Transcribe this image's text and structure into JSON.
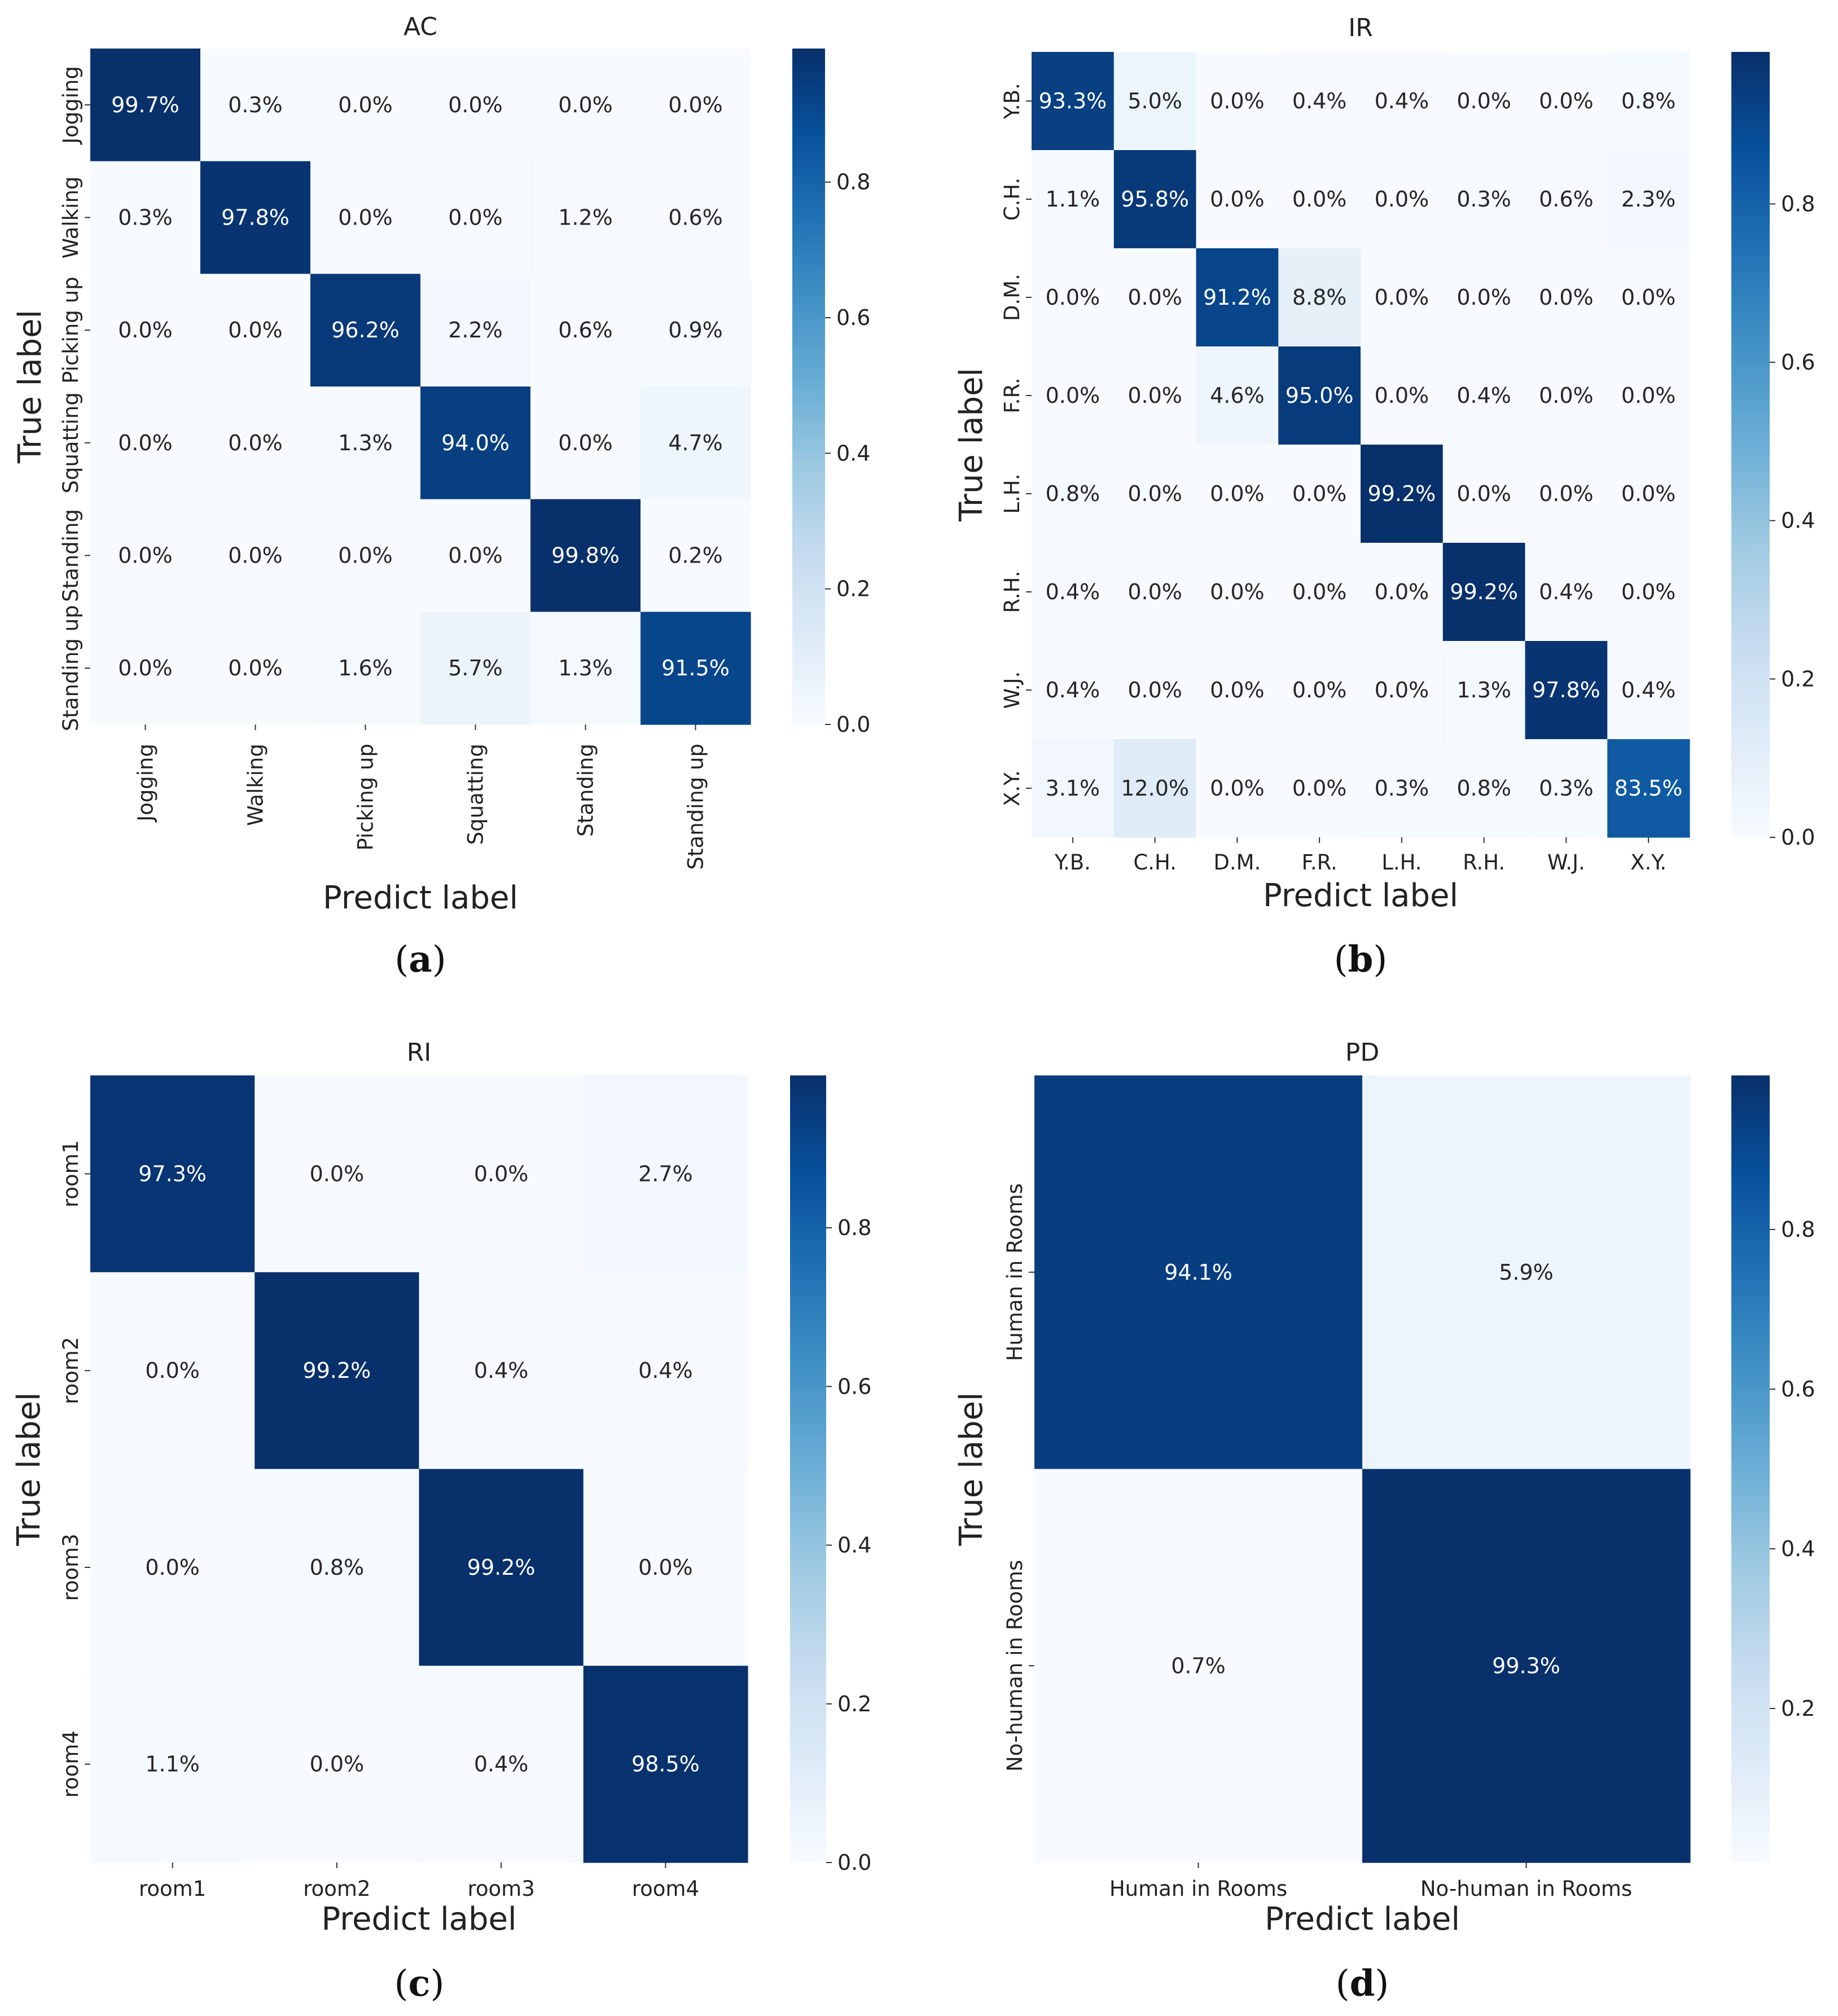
{
  "chart_data": [
    {
      "type": "heatmap",
      "title": "AC",
      "caption": "a",
      "xlabel": "Predict label",
      "ylabel": "True label",
      "x_categories": [
        "Jogging",
        "Walking",
        "Picking up",
        "Squatting",
        "Standing",
        "Standing up"
      ],
      "y_categories": [
        "Jogging",
        "Walking",
        "Picking up",
        "Squatting",
        "Standing",
        "Standing up"
      ],
      "values": [
        [
          99.7,
          0.3,
          0.0,
          0.0,
          0.0,
          0.0
        ],
        [
          0.3,
          97.8,
          0.0,
          0.0,
          1.2,
          0.6
        ],
        [
          0.0,
          0.0,
          96.2,
          2.2,
          0.6,
          0.9
        ],
        [
          0.0,
          0.0,
          1.3,
          94.0,
          0.0,
          4.7
        ],
        [
          0.0,
          0.0,
          0.0,
          0.0,
          99.8,
          0.2
        ],
        [
          0.0,
          0.0,
          1.6,
          5.7,
          1.3,
          91.5
        ]
      ],
      "colorbar_ticks": [
        "0.0",
        "0.2",
        "0.4",
        "0.6",
        "0.8"
      ],
      "colorbar_range": [
        0,
        0.997
      ],
      "xtick_rotation": "vertical",
      "ytick_rotation": "vertical"
    },
    {
      "type": "heatmap",
      "title": "IR",
      "caption": "b",
      "xlabel": "Predict label",
      "ylabel": "True label",
      "x_categories": [
        "Y.B.",
        "C.H.",
        "D.M.",
        "F.R.",
        "L.H.",
        "R.H.",
        "W.J.",
        "X.Y."
      ],
      "y_categories": [
        "Y.B.",
        "C.H.",
        "D.M.",
        "F.R.",
        "L.H.",
        "R.H.",
        "W.J.",
        "X.Y."
      ],
      "values": [
        [
          93.3,
          5.0,
          0.0,
          0.4,
          0.4,
          0.0,
          0.0,
          0.8
        ],
        [
          1.1,
          95.8,
          0.0,
          0.0,
          0.0,
          0.3,
          0.6,
          2.3
        ],
        [
          0.0,
          0.0,
          91.2,
          8.8,
          0.0,
          0.0,
          0.0,
          0.0
        ],
        [
          0.0,
          0.0,
          4.6,
          95.0,
          0.0,
          0.4,
          0.0,
          0.0
        ],
        [
          0.8,
          0.0,
          0.0,
          0.0,
          99.2,
          0.0,
          0.0,
          0.0
        ],
        [
          0.4,
          0.0,
          0.0,
          0.0,
          0.0,
          99.2,
          0.4,
          0.0
        ],
        [
          0.4,
          0.0,
          0.0,
          0.0,
          0.0,
          1.3,
          97.8,
          0.4
        ],
        [
          3.1,
          12.0,
          0.0,
          0.0,
          0.3,
          0.8,
          0.3,
          83.5
        ]
      ],
      "colorbar_ticks": [
        "0.0",
        "0.2",
        "0.4",
        "0.6",
        "0.8"
      ],
      "colorbar_range": [
        0,
        0.992
      ],
      "xtick_rotation": "horizontal",
      "ytick_rotation": "vertical"
    },
    {
      "type": "heatmap",
      "title": "RI",
      "caption": "c",
      "xlabel": "Predict label",
      "ylabel": "True label",
      "x_categories": [
        "room1",
        "room2",
        "room3",
        "room4"
      ],
      "y_categories": [
        "room1",
        "room2",
        "room3",
        "room4"
      ],
      "values": [
        [
          97.3,
          0.0,
          0.0,
          2.7
        ],
        [
          0.0,
          99.2,
          0.4,
          0.4
        ],
        [
          0.0,
          0.8,
          99.2,
          0.0
        ],
        [
          1.1,
          0.0,
          0.4,
          98.5
        ]
      ],
      "colorbar_ticks": [
        "0.0",
        "0.2",
        "0.4",
        "0.6",
        "0.8"
      ],
      "colorbar_range": [
        0,
        0.992
      ],
      "xtick_rotation": "horizontal",
      "ytick_rotation": "vertical"
    },
    {
      "type": "heatmap",
      "title": "PD",
      "caption": "d",
      "xlabel": "Predict label",
      "ylabel": "True label",
      "x_categories": [
        "Human in Rooms",
        "No-human in Rooms"
      ],
      "y_categories": [
        "Human in Rooms",
        "No-human in Rooms"
      ],
      "values": [
        [
          94.1,
          5.9
        ],
        [
          0.7,
          99.3
        ]
      ],
      "colorbar_ticks": [
        "0.2",
        "0.4",
        "0.6",
        "0.8"
      ],
      "colorbar_range": [
        0.007,
        0.993
      ],
      "xtick_rotation": "horizontal",
      "ytick_rotation": "vertical"
    }
  ]
}
